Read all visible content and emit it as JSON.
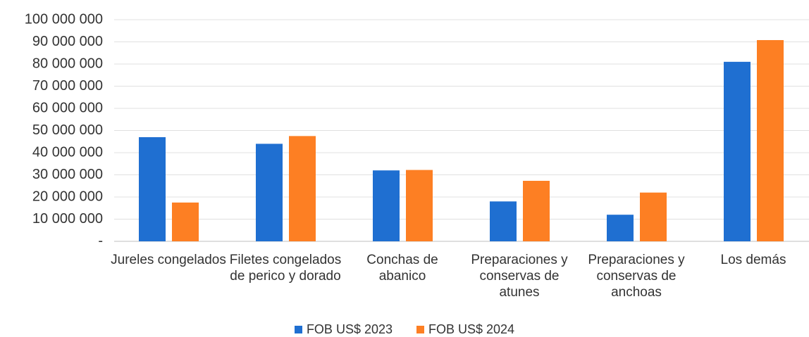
{
  "chart_data": {
    "type": "bar",
    "categories": [
      "Jureles congelados",
      "Filetes congelados de perico y dorado",
      "Conchas de abanico",
      "Preparaciones y conservas de atunes",
      "Preparaciones y conservas de anchoas",
      "Los demás"
    ],
    "series": [
      {
        "name": "FOB US$ 2023",
        "color": "#1f6fd1",
        "values": [
          47000000,
          44000000,
          32000000,
          18000000,
          12000000,
          81000000
        ]
      },
      {
        "name": "FOB US$ 2024",
        "color": "#fd7f23",
        "values": [
          17500000,
          47500000,
          32200000,
          27300000,
          22000000,
          90800000
        ]
      }
    ],
    "ylim": [
      0,
      100000000
    ],
    "yticks": [
      {
        "value": 0,
        "label": "-"
      },
      {
        "value": 10000000,
        "label": "10 000 000"
      },
      {
        "value": 20000000,
        "label": "20 000 000"
      },
      {
        "value": 30000000,
        "label": "30 000 000"
      },
      {
        "value": 40000000,
        "label": "40 000 000"
      },
      {
        "value": 50000000,
        "label": "50 000 000"
      },
      {
        "value": 60000000,
        "label": "60 000 000"
      },
      {
        "value": 70000000,
        "label": "70 000 000"
      },
      {
        "value": 80000000,
        "label": "80 000 000"
      },
      {
        "value": 90000000,
        "label": "90 000 000"
      },
      {
        "value": 100000000,
        "label": "100 000 000"
      }
    ],
    "grid": true
  }
}
